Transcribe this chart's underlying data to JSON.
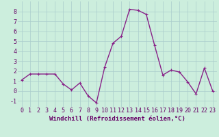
{
  "x": [
    0,
    1,
    2,
    3,
    4,
    5,
    6,
    7,
    8,
    9,
    10,
    11,
    12,
    13,
    14,
    15,
    16,
    17,
    18,
    19,
    20,
    21,
    22,
    23
  ],
  "y": [
    1.1,
    1.7,
    1.7,
    1.7,
    1.7,
    0.7,
    0.1,
    0.8,
    -0.5,
    -1.2,
    2.4,
    4.8,
    5.5,
    8.2,
    8.1,
    7.7,
    4.6,
    1.6,
    2.1,
    1.9,
    0.9,
    -0.3,
    2.3,
    0.0
  ],
  "line_color": "#882288",
  "marker": "+",
  "bg_color": "#cceedd",
  "grid_color": "#aacccc",
  "xlabel": "Windchill (Refroidissement éolien,°C)",
  "xlim": [
    -0.5,
    23.5
  ],
  "ylim": [
    -1.6,
    9.0
  ],
  "yticks": [
    -1,
    0,
    1,
    2,
    3,
    4,
    5,
    6,
    7,
    8
  ],
  "xticks": [
    0,
    1,
    2,
    3,
    4,
    5,
    6,
    7,
    8,
    9,
    10,
    11,
    12,
    13,
    14,
    15,
    16,
    17,
    18,
    19,
    20,
    21,
    22,
    23
  ],
  "xlabel_fontsize": 6.5,
  "tick_fontsize": 6.0,
  "line_width": 1.0,
  "marker_size": 3.5,
  "tick_color": "#660066",
  "label_color": "#660066"
}
